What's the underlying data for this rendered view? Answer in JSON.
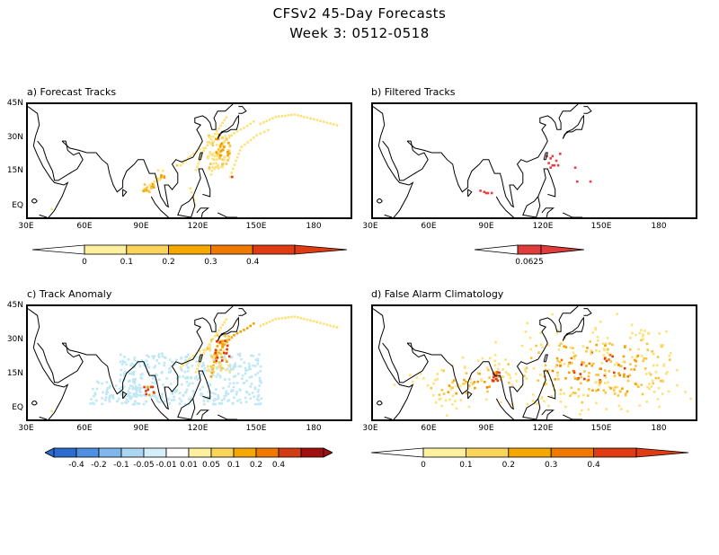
{
  "title_line1": "CFSv2 45-Day Forecasts",
  "title_line2": "Week 3: 0512-0518",
  "axes": {
    "lat_labels": [
      "45N",
      "30N",
      "15N",
      "EQ"
    ],
    "lon_labels": [
      "30E",
      "60E",
      "90E",
      "120E",
      "150E",
      "180"
    ]
  },
  "panels": [
    {
      "key": "a",
      "title": "a) Forecast Tracks",
      "colorbar": {
        "colors": [
          "#fff0a0",
          "#fbd45a",
          "#f5a800",
          "#f07a00",
          "#e03c14"
        ],
        "tick_labels": [
          "0",
          "0.1",
          "0.2",
          "0.3",
          "0.4"
        ]
      }
    },
    {
      "key": "b",
      "title": "b) Filtered Tracks",
      "colorbar": {
        "colors": [
          "#e03c3c"
        ],
        "tick_labels": [
          "0.0625"
        ]
      }
    },
    {
      "key": "c",
      "title": "c) Track Anomaly",
      "colorbar": {
        "colors": [
          "#2c6cd0",
          "#5090e0",
          "#80b8ee",
          "#aad6f4",
          "#d4eefa",
          "#ffffff",
          "#fff0a0",
          "#fbd45a",
          "#f5a800",
          "#f07a00",
          "#d23c14",
          "#a01010"
        ],
        "tick_labels": [
          "-0.4",
          "-0.2",
          "-0.1",
          "-0.05",
          "-0.01",
          "0.01",
          "0.05",
          "0.1",
          "0.2",
          "0.4"
        ]
      }
    },
    {
      "key": "d",
      "title": "d) False Alarm Climatology",
      "colorbar": {
        "colors": [
          "#fff0a0",
          "#fbd45a",
          "#f5a800",
          "#f07a00",
          "#e03c14"
        ],
        "tick_labels": [
          "0",
          "0.1",
          "0.2",
          "0.3",
          "0.4"
        ]
      }
    }
  ],
  "colors": {
    "yellow": "#fde17a",
    "light_orange": "#f9c440",
    "orange": "#f5a000",
    "dark_orange": "#ee7a00",
    "red": "#e03c14",
    "light_blue": "#bfe8f4",
    "filtered_red": "#e84040"
  }
}
